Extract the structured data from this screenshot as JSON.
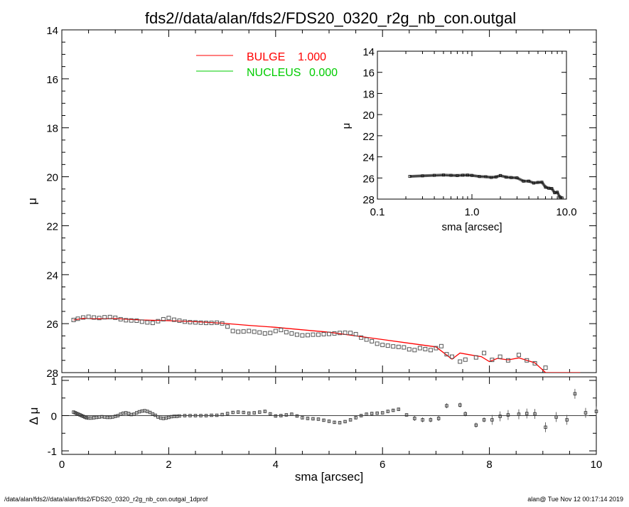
{
  "title": "fds2//data/alan/fds2/FDS20_0320_r2g_nb_con.outgal",
  "footer_left": "/data/alan/fds2//data/alan/fds2/FDS20_0320_r2g_nb_con.outgal_1dprof",
  "footer_right": "alan@  Tue Nov 12 00:17:14 2019",
  "colors": {
    "bulge": "#ff0000",
    "nucleus": "#00cc00",
    "data": "#555555",
    "axes": "#000000"
  },
  "chart_data": [
    {
      "type": "scatter",
      "panel": "main",
      "xlabel": "sma [arcsec]",
      "ylabel": "μ",
      "xlim": [
        0,
        10
      ],
      "ylim": [
        28,
        14
      ],
      "x_ticks": [
        "0",
        "2",
        "4",
        "6",
        "8",
        "10"
      ],
      "y_ticks": [
        "14",
        "16",
        "18",
        "20",
        "22",
        "24",
        "26",
        "28"
      ],
      "legend": [
        {
          "label": "BULGE",
          "value": "1.000",
          "color": "#ff0000"
        },
        {
          "label": "NUCLEUS",
          "value": "0.000",
          "color": "#00cc00"
        }
      ],
      "legend_placement": "top-center",
      "series": [
        {
          "kind": "observed",
          "x": [
            0.22,
            0.3,
            0.4,
            0.5,
            0.6,
            0.7,
            0.8,
            0.9,
            1.0,
            1.1,
            1.2,
            1.3,
            1.4,
            1.5,
            1.6,
            1.7,
            1.8,
            1.9,
            2.0,
            2.1,
            2.2,
            2.3,
            2.4,
            2.5,
            2.6,
            2.7,
            2.8,
            2.9,
            3.0,
            3.1,
            3.2,
            3.3,
            3.4,
            3.5,
            3.6,
            3.7,
            3.8,
            3.9,
            4.0,
            4.1,
            4.2,
            4.3,
            4.4,
            4.5,
            4.6,
            4.7,
            4.8,
            4.9,
            5.0,
            5.1,
            5.2,
            5.3,
            5.4,
            5.5,
            5.6,
            5.7,
            5.8,
            5.9,
            6.0,
            6.1,
            6.2,
            6.3,
            6.4,
            6.5,
            6.6,
            6.7,
            6.8,
            6.9,
            7.0,
            7.1,
            7.2,
            7.3,
            7.45,
            7.55,
            7.75,
            7.9,
            8.05,
            8.2,
            8.35,
            8.55,
            8.7,
            8.85,
            9.05,
            9.6,
            9.85,
            10.0
          ],
          "y": [
            25.85,
            25.8,
            25.75,
            25.72,
            25.75,
            25.77,
            25.74,
            25.73,
            25.76,
            25.82,
            25.86,
            25.87,
            25.88,
            25.92,
            25.95,
            25.97,
            25.9,
            25.82,
            25.77,
            25.84,
            25.88,
            25.92,
            25.94,
            25.95,
            25.96,
            25.97,
            25.97,
            25.96,
            25.99,
            26.12,
            26.3,
            26.33,
            26.32,
            26.3,
            26.33,
            26.36,
            26.4,
            26.38,
            26.3,
            26.26,
            26.35,
            26.4,
            26.45,
            26.48,
            26.47,
            26.45,
            26.45,
            26.43,
            26.42,
            26.4,
            26.38,
            26.37,
            26.38,
            26.43,
            26.57,
            26.65,
            26.72,
            26.82,
            26.87,
            26.9,
            26.93,
            26.95,
            26.97,
            27.05,
            27.08,
            27.0,
            27.04,
            27.08,
            27.0,
            26.92,
            27.25,
            27.35,
            27.55,
            27.47,
            27.38,
            27.2,
            27.48,
            27.35,
            27.5,
            27.28,
            27.5,
            27.62,
            27.8,
            28.2,
            28.3,
            28.35
          ]
        },
        {
          "kind": "model",
          "name": "BULGE",
          "x": [
            0.22,
            0.4,
            0.6,
            0.8,
            1.0,
            1.2,
            1.5,
            2.0,
            2.5,
            3.0,
            3.5,
            4.0,
            4.5,
            5.0,
            5.5,
            6.0,
            6.5,
            7.0,
            7.3,
            7.45,
            7.65,
            7.85,
            8.0,
            8.15,
            8.35,
            8.55,
            8.85,
            9.05,
            9.6,
            9.7
          ],
          "y": [
            25.85,
            25.78,
            25.8,
            25.8,
            25.79,
            25.82,
            25.85,
            25.88,
            25.92,
            25.98,
            26.07,
            26.15,
            26.25,
            26.35,
            26.5,
            26.65,
            26.8,
            26.95,
            27.45,
            27.2,
            27.28,
            27.35,
            27.55,
            27.42,
            27.48,
            27.4,
            27.6,
            28.0,
            28.0,
            28.0
          ]
        }
      ]
    },
    {
      "type": "scatter",
      "panel": "inset",
      "xlabel": "sma [arcsec]",
      "ylabel": "μ",
      "x_scale": "log",
      "xlim": [
        0.1,
        10
      ],
      "ylim": [
        28,
        14
      ],
      "x_ticks": [
        "0.1",
        "1.0",
        "10.0"
      ],
      "y_ticks": [
        "14",
        "16",
        "18",
        "20",
        "22",
        "24",
        "26",
        "28"
      ],
      "series": [
        {
          "x": [
            0.22,
            0.3,
            0.4,
            0.5,
            0.6,
            0.7,
            0.8,
            0.9,
            1.0,
            1.2,
            1.4,
            1.6,
            1.8,
            2.0,
            2.3,
            2.6,
            3.0,
            3.5,
            4.0,
            4.5,
            5.0,
            5.5,
            6.0,
            6.5,
            7.0,
            7.5,
            8.0,
            8.5,
            9.0
          ],
          "y": [
            25.85,
            25.8,
            25.75,
            25.72,
            25.75,
            25.77,
            25.74,
            25.73,
            25.76,
            25.86,
            25.88,
            25.95,
            25.9,
            25.77,
            25.92,
            25.96,
            25.99,
            26.3,
            26.3,
            26.48,
            26.42,
            26.4,
            26.87,
            26.97,
            27.0,
            27.4,
            27.35,
            27.8,
            27.9
          ]
        }
      ]
    },
    {
      "type": "scatter",
      "panel": "residuals",
      "xlabel": "sma [arcsec]",
      "ylabel": "Δ μ",
      "xlim": [
        0,
        10
      ],
      "ylim": [
        -1.1,
        1.1
      ],
      "x_ticks": [
        "0",
        "2",
        "4",
        "6",
        "8",
        "10"
      ],
      "y_ticks": [
        "1",
        "0",
        "-1"
      ],
      "series": [
        {
          "x": [
            0.22,
            0.25,
            0.28,
            0.31,
            0.34,
            0.37,
            0.4,
            0.43,
            0.46,
            0.5,
            0.55,
            0.6,
            0.65,
            0.7,
            0.75,
            0.8,
            0.85,
            0.9,
            0.95,
            1.0,
            1.05,
            1.1,
            1.15,
            1.2,
            1.25,
            1.3,
            1.35,
            1.4,
            1.45,
            1.5,
            1.55,
            1.6,
            1.65,
            1.7,
            1.75,
            1.8,
            1.85,
            1.9,
            1.95,
            2.0,
            2.05,
            2.1,
            2.15,
            2.2,
            2.3,
            2.4,
            2.5,
            2.6,
            2.7,
            2.8,
            2.9,
            3.0,
            3.1,
            3.2,
            3.3,
            3.4,
            3.5,
            3.6,
            3.7,
            3.8,
            3.9,
            4.0,
            4.1,
            4.2,
            4.3,
            4.4,
            4.5,
            4.6,
            4.7,
            4.8,
            4.9,
            5.0,
            5.1,
            5.2,
            5.3,
            5.4,
            5.5,
            5.6,
            5.7,
            5.8,
            5.9,
            6.0,
            6.1,
            6.2,
            6.3,
            6.45,
            6.6,
            6.75,
            6.9,
            7.05,
            7.2,
            7.45,
            7.55,
            7.75,
            7.9,
            8.05,
            8.2,
            8.35,
            8.55,
            8.7,
            8.85,
            9.05,
            9.25,
            9.45,
            9.6,
            9.8,
            10.0
          ],
          "y": [
            0.1,
            0.08,
            0.06,
            0.04,
            0.02,
            0.0,
            -0.02,
            -0.04,
            -0.06,
            -0.07,
            -0.07,
            -0.06,
            -0.05,
            -0.04,
            -0.03,
            -0.04,
            -0.05,
            -0.05,
            -0.04,
            -0.02,
            0.0,
            0.04,
            0.07,
            0.08,
            0.06,
            0.03,
            0.04,
            0.08,
            0.11,
            0.13,
            0.14,
            0.12,
            0.09,
            0.05,
            0.01,
            -0.04,
            -0.07,
            -0.08,
            -0.07,
            -0.05,
            -0.03,
            -0.02,
            -0.02,
            -0.01,
            0.0,
            0.0,
            0.0,
            0.0,
            0.0,
            0.01,
            0.01,
            0.03,
            0.06,
            0.09,
            0.1,
            0.09,
            0.07,
            0.08,
            0.1,
            0.12,
            0.05,
            -0.01,
            0.0,
            0.02,
            0.04,
            -0.01,
            -0.06,
            -0.08,
            -0.09,
            -0.1,
            -0.13,
            -0.16,
            -0.19,
            -0.2,
            -0.17,
            -0.12,
            -0.06,
            0.0,
            0.04,
            0.06,
            0.07,
            0.08,
            0.12,
            0.15,
            0.18,
            0.02,
            -0.08,
            -0.12,
            -0.12,
            -0.08,
            0.28,
            0.3,
            0.05,
            -0.27,
            -0.12,
            -0.12,
            -0.02,
            0.02,
            0.04,
            0.06,
            0.05,
            -0.33,
            -0.04,
            -0.12,
            0.62,
            0.08,
            0.12
          ]
        }
      ]
    }
  ]
}
